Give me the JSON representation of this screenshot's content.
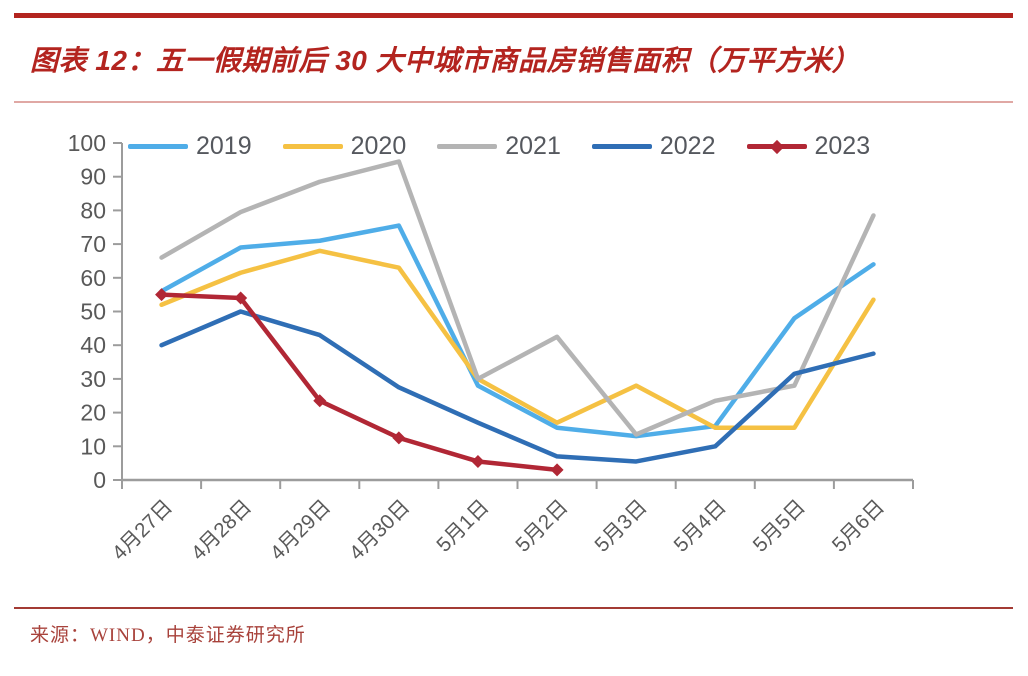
{
  "page": {
    "title": "图表 12：五一假期前后 30 大中城市商品房销售面积（万平方米）",
    "source": "来源：WIND，中泰证券研究所"
  },
  "colors": {
    "accent_red": "#B3241F",
    "light_rule": "#E0A8A4",
    "source_rule": "#A33B34",
    "axis_line": "#9C9C9C",
    "axis_text": "#595959"
  },
  "chart_data": {
    "type": "line",
    "title": "五一假期前后30大中城市商品房销售面积（万平方米）",
    "xlabel": "",
    "ylabel": "",
    "ylim": [
      0,
      100
    ],
    "y_ticks": [
      0,
      10,
      20,
      30,
      40,
      50,
      60,
      70,
      80,
      90,
      100
    ],
    "grid": false,
    "legend_position": "top",
    "categories": [
      "4月27日",
      "4月28日",
      "4月29日",
      "4月30日",
      "5月1日",
      "5月2日",
      "5月3日",
      "5月4日",
      "5月5日",
      "5月6日"
    ],
    "series": [
      {
        "name": "2019",
        "color": "#4FADE8",
        "marker": "none",
        "values": [
          56,
          69,
          71,
          75.5,
          28,
          15.5,
          13,
          16,
          48,
          64
        ]
      },
      {
        "name": "2020",
        "color": "#F5C143",
        "marker": "none",
        "values": [
          52,
          61.5,
          68,
          63,
          30,
          17,
          28,
          15.5,
          15.5,
          53.5
        ]
      },
      {
        "name": "2021",
        "color": "#B4B4B4",
        "marker": "none",
        "values": [
          66,
          79.5,
          88.5,
          94.5,
          30,
          42.5,
          13.5,
          23.5,
          28,
          78.5
        ]
      },
      {
        "name": "2022",
        "color": "#2F6EB5",
        "marker": "none",
        "values": [
          40,
          50,
          43,
          27.5,
          17,
          7,
          5.5,
          10,
          31.5,
          37.5
        ]
      },
      {
        "name": "2023",
        "color": "#B12735",
        "marker": "diamond",
        "values": [
          55,
          54,
          23.5,
          12.5,
          5.5,
          3,
          null,
          null,
          null,
          null
        ]
      }
    ]
  }
}
